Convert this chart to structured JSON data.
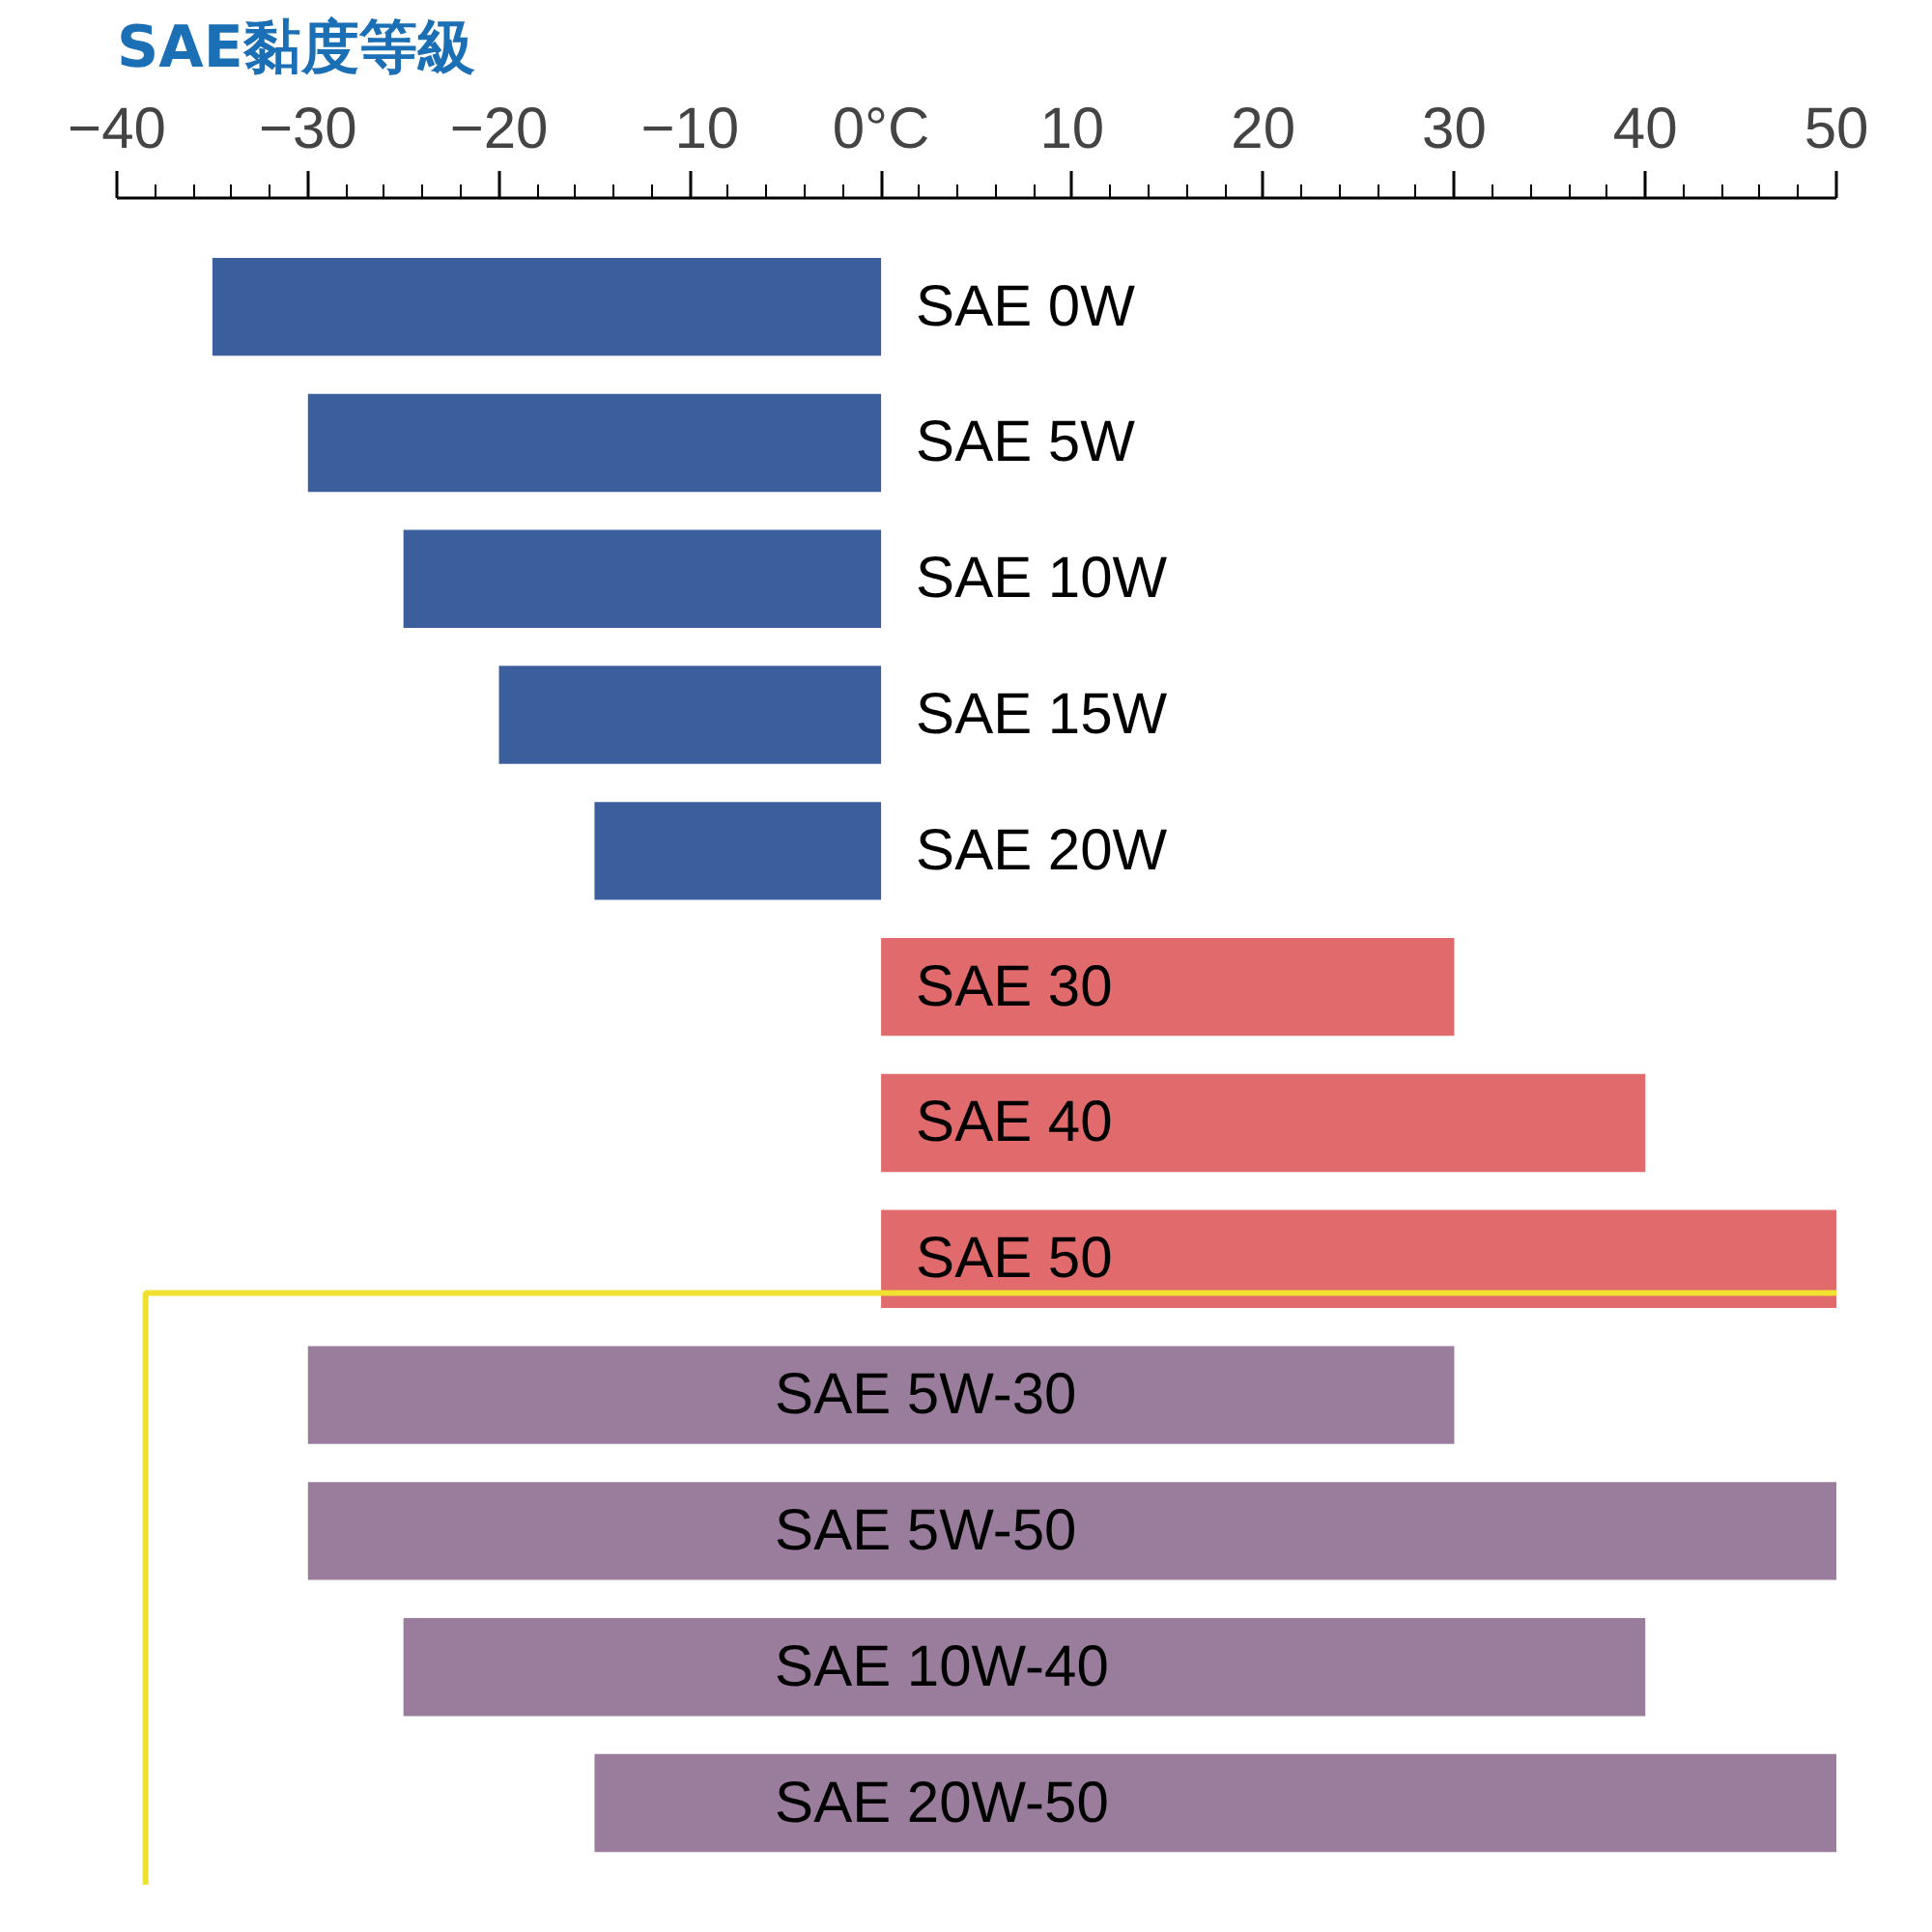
{
  "chart_data": {
    "type": "bar",
    "orientation": "horizontal",
    "title": "SAE黏度等級",
    "categories": [
      "SAE 0W",
      "SAE 5W",
      "SAE 10W",
      "SAE 15W",
      "SAE 20W",
      "SAE 30",
      "SAE 40",
      "SAE 50",
      "SAE 5W-30",
      "SAE 5W-50",
      "SAE 10W-40",
      "SAE 20W-50"
    ],
    "base": [
      -35,
      -30,
      -25,
      -20,
      -15,
      0,
      0,
      0,
      -30,
      -30,
      -25,
      -15
    ],
    "values": [
      35,
      30,
      25,
      20,
      15,
      30,
      40,
      50,
      60,
      80,
      65,
      65
    ],
    "colors": [
      "#3a5f9c",
      "#3a5f9c",
      "#3a5f9c",
      "#3a5f9c",
      "#3a5f9c",
      "#e06a6c",
      "#e06a6c",
      "#e06a6c",
      "#9a7d9c",
      "#9a7d9c",
      "#9a7d9c",
      "#9a7d9c"
    ],
    "xlim": [
      -40,
      50
    ],
    "xticks": [
      -40,
      -30,
      -20,
      -10,
      {
        "value": 0,
        "label": "0°C"
      },
      10,
      20,
      30,
      40,
      50
    ],
    "grid": false
  }
}
